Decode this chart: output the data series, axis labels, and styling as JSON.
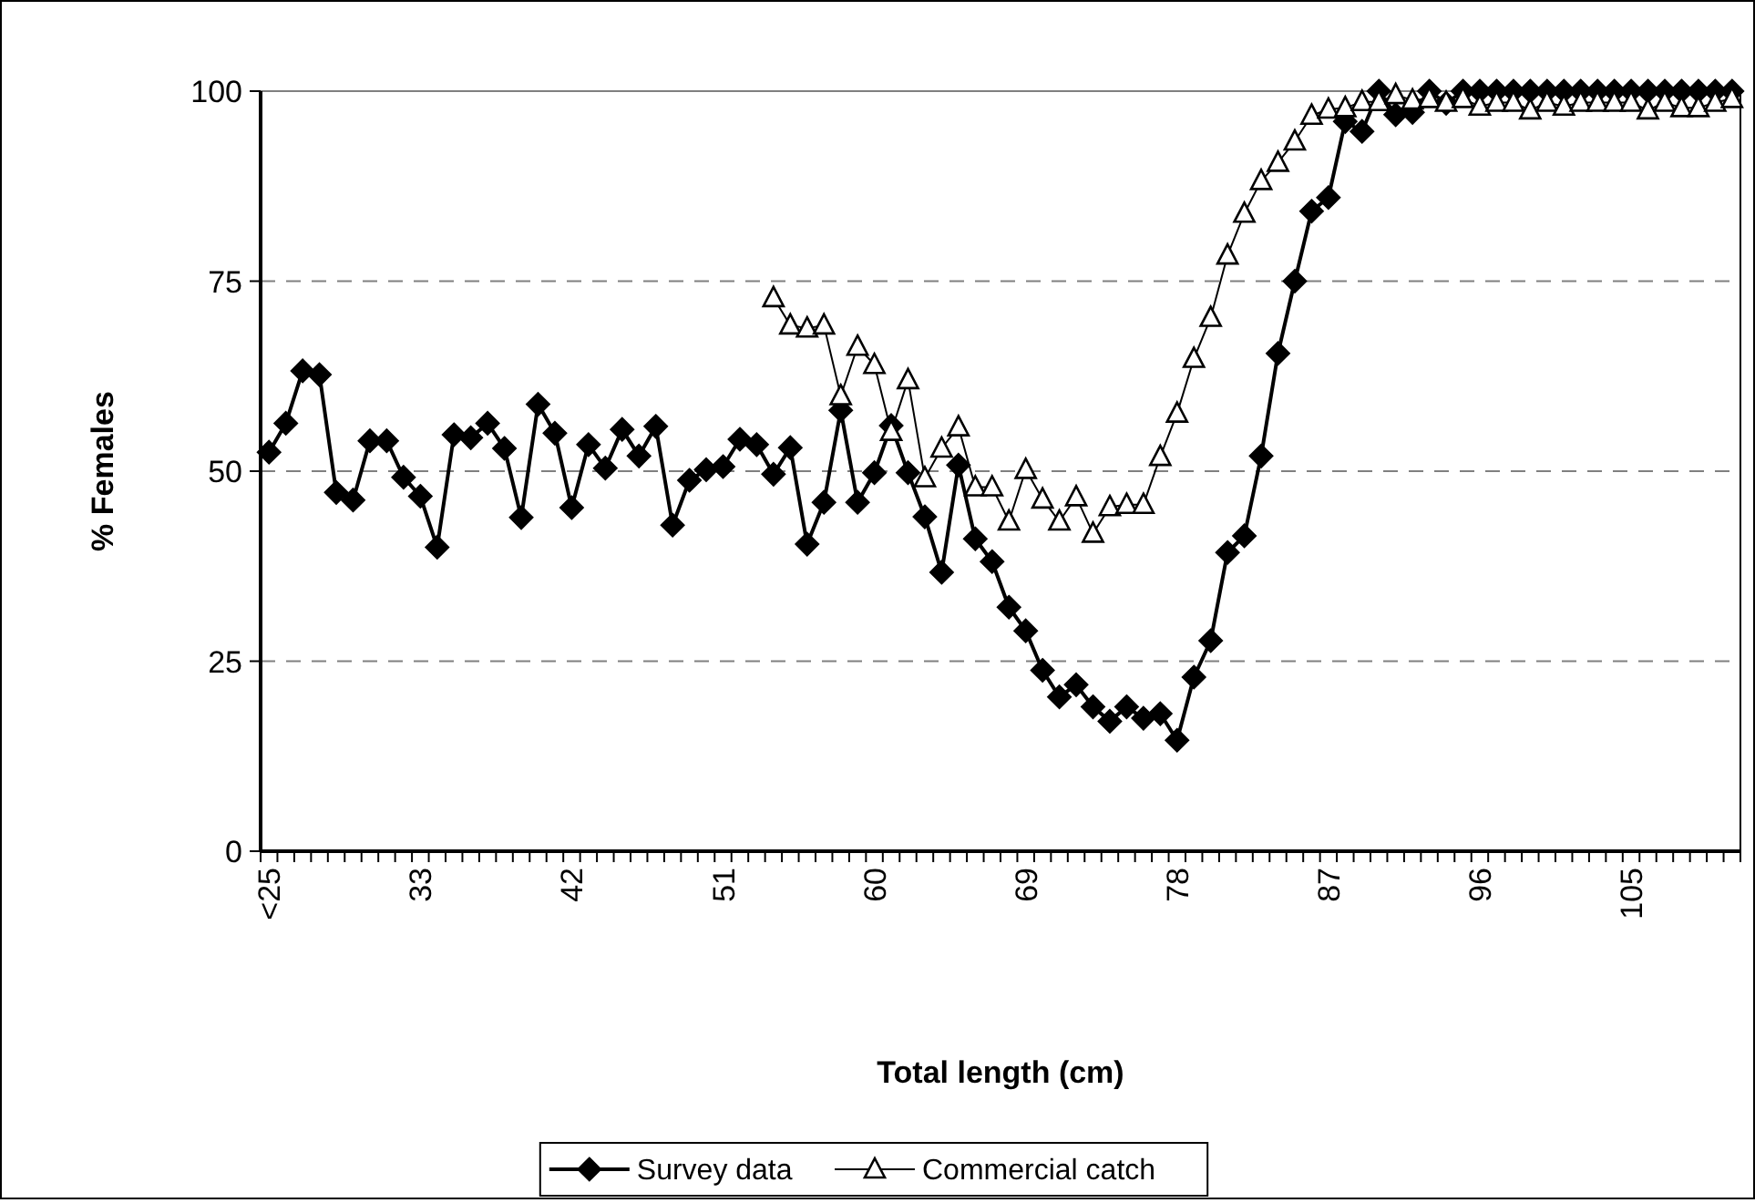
{
  "chart_data": {
    "type": "line",
    "xlabel": "Total length (cm)",
    "ylabel": "% Females",
    "categories": [
      "<25",
      null,
      null,
      null,
      null,
      null,
      null,
      null,
      null,
      "33",
      null,
      null,
      null,
      null,
      null,
      null,
      null,
      null,
      "42",
      null,
      null,
      null,
      null,
      null,
      null,
      null,
      null,
      "51",
      null,
      null,
      null,
      null,
      null,
      null,
      null,
      null,
      "60",
      null,
      null,
      null,
      null,
      null,
      null,
      null,
      null,
      "69",
      null,
      null,
      null,
      null,
      null,
      null,
      null,
      null,
      "78",
      null,
      null,
      null,
      null,
      null,
      null,
      null,
      null,
      "87",
      null,
      null,
      null,
      null,
      null,
      null,
      null,
      null,
      "96",
      null,
      null,
      null,
      null,
      null,
      null,
      null,
      null,
      "105",
      null,
      null,
      null,
      null,
      null,
      null
    ],
    "series": [
      {
        "name": "Survey data",
        "color": "#000000",
        "marker": "diamond",
        "values": [
          52.5,
          56.3,
          63.2,
          62.7,
          47.2,
          46.2,
          54,
          54,
          49.2,
          46.7,
          40,
          54.8,
          54.4,
          56.3,
          53,
          43.9,
          58.8,
          55,
          45.2,
          53.5,
          50.4,
          55.5,
          52,
          55.9,
          42.9,
          48.8,
          50.2,
          50.6,
          54.2,
          53.5,
          49.6,
          53.1,
          40.4,
          45.9,
          58,
          45.9,
          49.8,
          56,
          49.8,
          44,
          36.7,
          50.8,
          41.1,
          38.1,
          32.1,
          29,
          23.8,
          20.3,
          21.9,
          19,
          17.1,
          19,
          17.5,
          18.1,
          14.6,
          22.9,
          27.7,
          39.3,
          41.5,
          52,
          65.5,
          75,
          84.2,
          86,
          96,
          94.7,
          100,
          96.9,
          97.2,
          100,
          98.4,
          100,
          100,
          100,
          100,
          100,
          100,
          100,
          100,
          100,
          100,
          100,
          100,
          100,
          100,
          100,
          100,
          100
        ]
      },
      {
        "name": "Commercial catch",
        "color": "#000000",
        "marker": "triangle",
        "values": [
          null,
          null,
          null,
          null,
          null,
          null,
          null,
          null,
          null,
          null,
          null,
          null,
          null,
          null,
          null,
          null,
          null,
          null,
          null,
          null,
          null,
          null,
          null,
          null,
          null,
          null,
          null,
          null,
          null,
          null,
          72.8,
          69.2,
          68.8,
          69.2,
          59.9,
          66.4,
          64,
          55.2,
          62,
          49.1,
          53,
          55.8,
          47.9,
          47.9,
          43.4,
          50.2,
          46.3,
          43.4,
          46.6,
          41.8,
          45.3,
          45.6,
          45.6,
          51.9,
          57.6,
          64.8,
          70.2,
          78.4,
          83.9,
          88.2,
          90.6,
          93.4,
          96.8,
          97.6,
          97.8,
          98.6,
          98.6,
          99.5,
          98.8,
          99,
          98.5,
          99,
          98,
          98.5,
          98.5,
          97.5,
          98.5,
          98,
          98.5,
          98.5,
          98.5,
          98.5,
          97.5,
          98.5,
          97.8,
          97.8,
          98.5,
          99
        ]
      }
    ],
    "ylim": [
      0,
      100
    ],
    "yticks": [
      0,
      25,
      50,
      75,
      100
    ],
    "grid": "y",
    "legend": "bottom",
    "line_style": "solid"
  }
}
